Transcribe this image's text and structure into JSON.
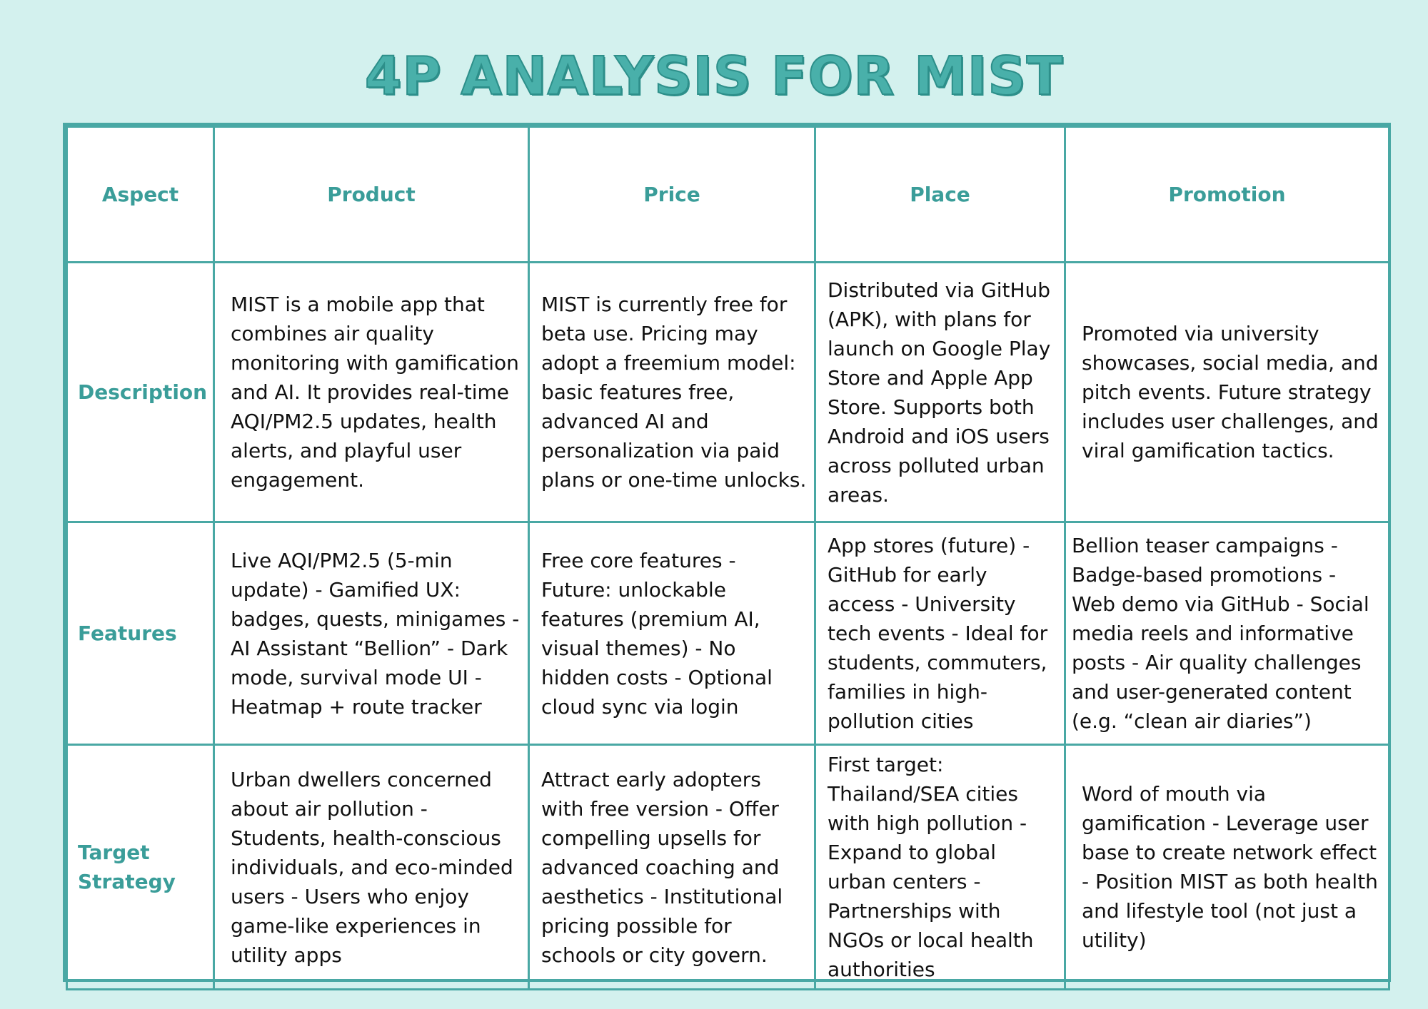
{
  "title": "4P ANALYSIS FOR MIST",
  "table": {
    "headers": [
      "Aspect",
      "Product",
      "Price",
      "Place",
      "Promotion"
    ],
    "rows": [
      {
        "aspect": "Description",
        "product": "MIST is a mobile app that combines air quality monitoring with gamification and AI. It provides real-time AQI/PM2.5 updates, health alerts, and playful user engagement.",
        "price": "MIST is currently free for beta use. Pricing may adopt a freemium model: basic features free, advanced AI and personalization via paid plans or one-time unlocks.",
        "place": "Distributed via GitHub (APK), with plans for launch on Google Play Store and Apple App Store. Supports both Android and iOS users across polluted urban areas.",
        "promotion": "Promoted via university showcases, social media, and pitch events. Future strategy includes  user challenges, and viral gamification tactics."
      },
      {
        "aspect": "Features",
        "product": "Live AQI/PM2.5 (5-min update) - Gamified UX: badges, quests, minigames - AI Assistant “Bellion” - Dark mode, survival mode UI - Heatmap + route tracker",
        "price": "Free core features - Future: unlockable features (premium AI, visual themes) - No hidden costs - Optional cloud sync via login",
        "place": "App stores (future) - GitHub for early access - University tech events - Ideal for students, commuters, families in high-pollution cities",
        "promotion": "Bellion teaser campaigns - Badge-based promotions - Web demo via GitHub - Social media reels and informative posts - Air quality challenges and user-generated content (e.g. “clean air diaries”)"
      },
      {
        "aspect": "Target Strategy",
        "product": "Urban dwellers concerned about air pollution - Students, health-conscious individuals, and eco-minded users - Users who enjoy game-like experiences in utility apps",
        "price": "Attract early adopters with free version - Offer compelling upsells for advanced coaching and aesthetics - Institutional pricing possible for schools or city govern.",
        "place": "First target: Thailand/SEA cities with high pollution - Expand to global urban centers - Partnerships with NGOs or local health authorities",
        "promotion": "Word of mouth via gamification - Leverage user base to create network effect - Position MIST as both health and lifestyle tool (not just a utility)"
      }
    ]
  },
  "colors": {
    "background": "#d3f1ee",
    "accent": "#49a8a4",
    "header_text": "#3a9d99",
    "body_text": "#111111",
    "table_bg": "#ffffff"
  }
}
